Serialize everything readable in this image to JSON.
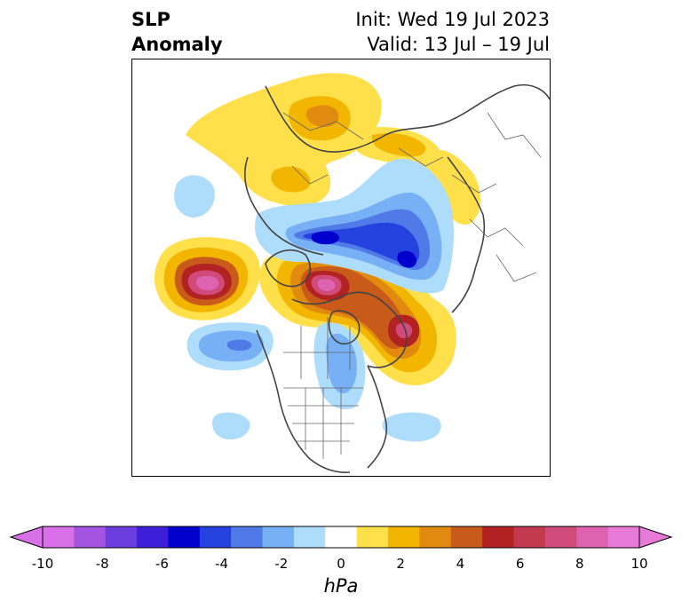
{
  "title": {
    "variable_line1": "SLP",
    "variable_line2": "Anomaly",
    "init": "Init: Wed 19 Jul 2023",
    "valid": "Valid: 13 Jul – 19 Jul"
  },
  "colorbar": {
    "unit": "hPa",
    "tick_labels": [
      "-10",
      "-8",
      "-6",
      "-4",
      "-2",
      "0",
      "2",
      "4",
      "6",
      "8",
      "10"
    ],
    "bins": [
      {
        "color": "#d870e8"
      },
      {
        "color": "#a355e2"
      },
      {
        "color": "#6b3ddf"
      },
      {
        "color": "#3c1fd6"
      },
      {
        "color": "#0000cc"
      },
      {
        "color": "#2541de"
      },
      {
        "color": "#4f7ae8"
      },
      {
        "color": "#78b0f5"
      },
      {
        "color": "#aedcfb"
      },
      {
        "color": "#ffffff"
      },
      {
        "color": "#ffdf4a"
      },
      {
        "color": "#f2b500"
      },
      {
        "color": "#e08b10"
      },
      {
        "color": "#c85a1a"
      },
      {
        "color": "#b22222"
      },
      {
        "color": "#c23a4e"
      },
      {
        "color": "#d04a7a"
      },
      {
        "color": "#dd62b0"
      },
      {
        "color": "#e77ad8"
      }
    ],
    "extend_low_color": "#d870e8",
    "extend_high_color": "#e77ad8"
  },
  "map": {
    "projection": "north-polar-stereographic",
    "features": [
      "coastlines",
      "country-borders",
      "state-borders"
    ]
  }
}
